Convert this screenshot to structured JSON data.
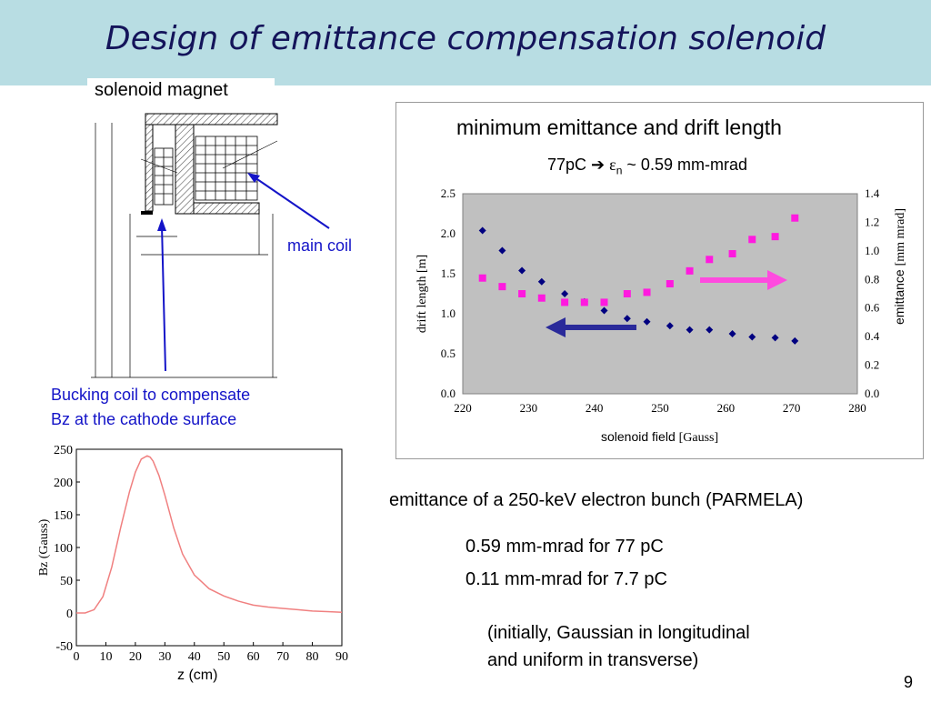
{
  "slide": {
    "title": "Design of emittance compensation solenoid",
    "page_number": "9",
    "colors": {
      "title_bg": "#b8dde3",
      "title_text": "#14145a",
      "annotation": "#1414c8",
      "magenta": "#ff1adf",
      "navy": "#000080"
    }
  },
  "diagram": {
    "heading": "solenoid magnet",
    "main_coil_label": "main coil",
    "bucking_label_line1": "Bucking coil to compensate",
    "bucking_label_line2": "Bz at the cathode surface"
  },
  "text_block": {
    "heading": "emittance of a 250-keV electron bunch (PARMELA)",
    "line1": "0.59 mm-mrad  for 77 pC",
    "line2": "0.11 mm-mrad  for 7.7 pC",
    "note1": "(initially, Gaussian in longitudinal",
    "note2": "and uniform in transverse)"
  },
  "chart_data": [
    {
      "type": "scatter",
      "title": "minimum emittance and drift length",
      "subtitle_prefix": "77pC",
      "subtitle_symbol": "ε",
      "subtitle_subscript": "n",
      "subtitle_suffix": "~ 0.59 mm-mrad",
      "xlabel_main": "solenoid field",
      "xlabel_unit": "[Gauss]",
      "ylabel_left": "drift  length  [m]",
      "ylabel_right_main": "emittance",
      "ylabel_right_unit": "[mm mrad]",
      "xlim": [
        220,
        280
      ],
      "ylim_left": [
        0,
        2.5
      ],
      "ylim_right": [
        0,
        1.4
      ],
      "x_ticks": [
        "220",
        "230",
        "240",
        "250",
        "260",
        "270",
        "280"
      ],
      "y_left_ticks": [
        "0.0",
        "0.5",
        "1.0",
        "1.5",
        "2.0",
        "2.5"
      ],
      "y_right_ticks": [
        "0.0",
        "0.2",
        "0.4",
        "0.6",
        "0.8",
        "1.0",
        "1.2",
        "1.4"
      ],
      "grid": false,
      "series": [
        {
          "axis": "left",
          "marker": "diamond",
          "color": "#000080",
          "x": [
            223,
            226,
            229,
            232,
            235.5,
            238.5,
            241.5,
            245,
            248,
            251.5,
            254.5,
            257.5,
            261,
            264,
            267.5,
            270.5
          ],
          "y": [
            2.04,
            1.79,
            1.54,
            1.4,
            1.25,
            1.15,
            1.04,
            0.94,
            0.9,
            0.85,
            0.8,
            0.8,
            0.75,
            0.71,
            0.7,
            0.66
          ]
        },
        {
          "axis": "right",
          "marker": "square",
          "color": "#ff1adf",
          "x": [
            223,
            226,
            229,
            232,
            235.5,
            238.5,
            241.5,
            245,
            248,
            251.5,
            254.5,
            257.5,
            261,
            264,
            267.5,
            270.5
          ],
          "y": [
            0.81,
            0.75,
            0.7,
            0.67,
            0.64,
            0.64,
            0.64,
            0.7,
            0.71,
            0.77,
            0.86,
            0.94,
            0.98,
            1.08,
            1.1,
            1.23
          ]
        }
      ]
    },
    {
      "type": "line",
      "xlabel": "z (cm)",
      "ylabel": "Bz (Gauss)",
      "xlim": [
        0,
        90
      ],
      "ylim": [
        -50,
        250
      ],
      "x_ticks": [
        "0",
        "10",
        "20",
        "30",
        "40",
        "50",
        "60",
        "70",
        "80",
        "90"
      ],
      "y_ticks": [
        "250",
        "200",
        "150",
        "100",
        "50",
        "0",
        "-50"
      ],
      "series": [
        {
          "color": "#f08080",
          "x": [
            0,
            3,
            6,
            9,
            12,
            15,
            18,
            20,
            22,
            24,
            25,
            26,
            28,
            30,
            33,
            36,
            40,
            45,
            50,
            55,
            60,
            65,
            70,
            75,
            80,
            85,
            90
          ],
          "y": [
            0,
            0,
            5,
            25,
            70,
            130,
            185,
            215,
            235,
            240,
            238,
            232,
            210,
            180,
            130,
            90,
            58,
            37,
            26,
            18,
            12,
            9,
            7,
            5,
            3,
            2,
            1
          ]
        }
      ]
    }
  ]
}
